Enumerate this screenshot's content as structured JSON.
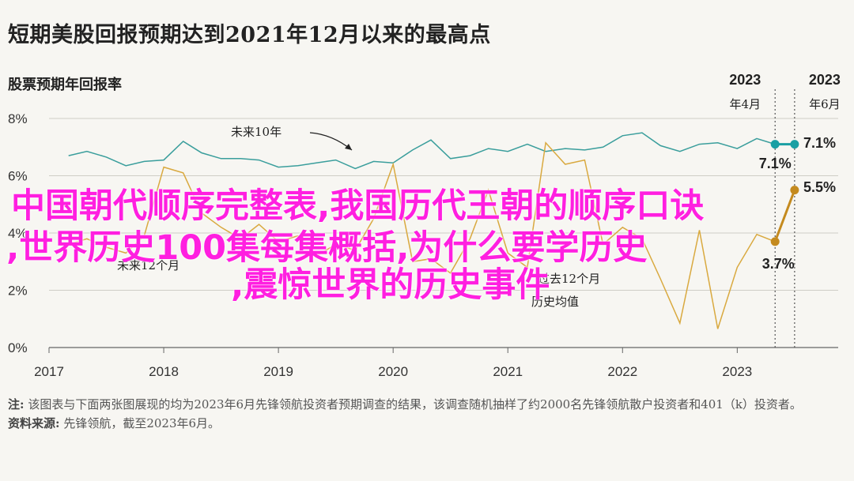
{
  "title": "短期美股回报预期达到2021年12月以来的最高点",
  "subtitle": "股票预期年回报率",
  "chart_data": {
    "type": "line",
    "ylim": [
      0,
      8
    ],
    "y_ticks": [
      "0%",
      "2%",
      "4%",
      "6%",
      "8%"
    ],
    "x_ticks": [
      "2017",
      "2018",
      "2019",
      "2020",
      "2021",
      "2022",
      "2023"
    ],
    "series": [
      {
        "name": "未来10年",
        "color": "#3a9e9c",
        "x": [
          2017.17,
          2017.33,
          2017.5,
          2017.67,
          2017.83,
          2018.0,
          2018.17,
          2018.33,
          2018.5,
          2018.67,
          2018.83,
          2019.0,
          2019.17,
          2019.33,
          2019.5,
          2019.67,
          2019.83,
          2020.0,
          2020.17,
          2020.33,
          2020.5,
          2020.67,
          2020.83,
          2021.0,
          2021.17,
          2021.33,
          2021.5,
          2021.67,
          2021.83,
          2022.0,
          2022.17,
          2022.33,
          2022.5,
          2022.67,
          2022.83,
          2023.0,
          2023.17,
          2023.33,
          2023.5
        ],
        "values": [
          6.7,
          6.85,
          6.65,
          6.35,
          6.5,
          6.55,
          7.2,
          6.8,
          6.6,
          6.6,
          6.55,
          6.3,
          6.35,
          6.45,
          6.55,
          6.25,
          6.5,
          6.45,
          6.9,
          7.25,
          6.6,
          6.7,
          6.95,
          6.85,
          7.1,
          6.85,
          6.95,
          6.9,
          7.0,
          7.4,
          7.5,
          7.05,
          6.85,
          7.1,
          7.15,
          6.95,
          7.3,
          7.1,
          7.1
        ]
      },
      {
        "name": "未来12个月",
        "color": "#d9a93f",
        "x": [
          2017.17,
          2017.33,
          2017.5,
          2017.67,
          2017.83,
          2018.0,
          2018.17,
          2018.33,
          2018.5,
          2018.67,
          2018.83,
          2019.0,
          2019.17,
          2019.33,
          2019.5,
          2019.67,
          2019.83,
          2020.0,
          2020.17,
          2020.33,
          2020.5,
          2020.67,
          2020.83,
          2021.0,
          2021.17,
          2021.33,
          2021.5,
          2021.67,
          2021.83,
          2022.0,
          2022.17,
          2022.33,
          2022.5,
          2022.67,
          2022.83,
          2023.0,
          2023.17,
          2023.33,
          2023.5
        ],
        "values": [
          3.6,
          3.8,
          3.5,
          3.3,
          3.9,
          6.3,
          6.1,
          4.7,
          4.2,
          3.8,
          4.3,
          3.7,
          3.9,
          3.2,
          3.6,
          3.4,
          4.5,
          6.4,
          3.0,
          3.1,
          2.6,
          3.8,
          5.5,
          3.3,
          2.8,
          7.15,
          6.4,
          6.55,
          3.6,
          4.2,
          3.8,
          2.4,
          0.85,
          4.1,
          0.65,
          2.8,
          3.95,
          3.7,
          5.5
        ]
      }
    ],
    "highlight": [
      {
        "series": 0,
        "from": 2023.33,
        "to": 2023.5
      },
      {
        "series": 1,
        "from": 2023.33,
        "to": 2023.5
      }
    ],
    "dividers": [
      {
        "x": 2023.33,
        "label_year": "2023",
        "label_month": "年4月"
      },
      {
        "x": 2023.5,
        "label_year": "2023",
        "label_month": "年6月"
      }
    ],
    "annotations": {
      "long_term": "未来10年",
      "short_term": "未来12个月",
      "avg_label_a": "过去12个月",
      "avg_label_b": "历史均值",
      "teal_apr": "7.1%",
      "teal_jun": "7.1%",
      "gold_apr": "3.7%",
      "gold_jun": "5.5%"
    }
  },
  "overlay": {
    "line1": "中国朝代顺序完整表,我国历代王朝的顺序口诀",
    "line2": ",世界历史100集每集概括,为什么要学历史",
    "line3": ",震惊世界的历史事件"
  },
  "notes": {
    "note_label": "注:",
    "note_text": " 该图表与下面两张图展现的均为2023年6月先锋领航投资者预期调查的结果，该调查随机抽样了约2000名先锋领航散户投资者和401（k）投资者。",
    "source_label": "资料来源:",
    "source_text": " 先锋领航，截至2023年6月。"
  }
}
